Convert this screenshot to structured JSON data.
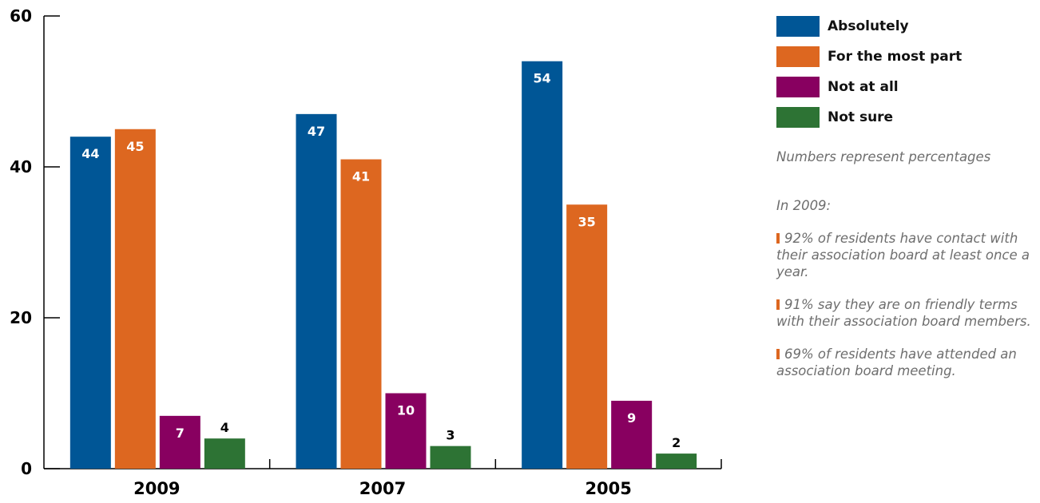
{
  "chart_data": {
    "type": "bar",
    "categories": [
      "2009",
      "2007",
      "2005"
    ],
    "series": [
      {
        "name": "Absolutely",
        "color": "#005696",
        "values": [
          44,
          47,
          54
        ]
      },
      {
        "name": "For the most part",
        "color": "#DD6720",
        "values": [
          45,
          41,
          35
        ]
      },
      {
        "name": "Not at all",
        "color": "#880060",
        "values": [
          7,
          10,
          9
        ]
      },
      {
        "name": "Not sure",
        "color": "#2D7334",
        "values": [
          4,
          3,
          2
        ]
      }
    ],
    "ylim": [
      0,
      60
    ],
    "yticks": [
      0,
      20,
      40,
      60
    ],
    "data_labels": [
      [
        "44",
        "47",
        "54"
      ],
      [
        "45",
        "41",
        "35"
      ],
      [
        "7",
        "10",
        "9"
      ],
      [
        "4",
        "3",
        "2"
      ]
    ],
    "legend_position": "right",
    "grid": false
  },
  "notes": {
    "caption": "Numbers represent percentages",
    "intro": "In 2009:",
    "bullet_color": "#DD6720",
    "bullets": [
      "92% of residents have contact with their association board at least once a year.",
      "91% say they are on friendly terms with their association board members.",
      "69% of residents have attended an association board meeting."
    ]
  }
}
